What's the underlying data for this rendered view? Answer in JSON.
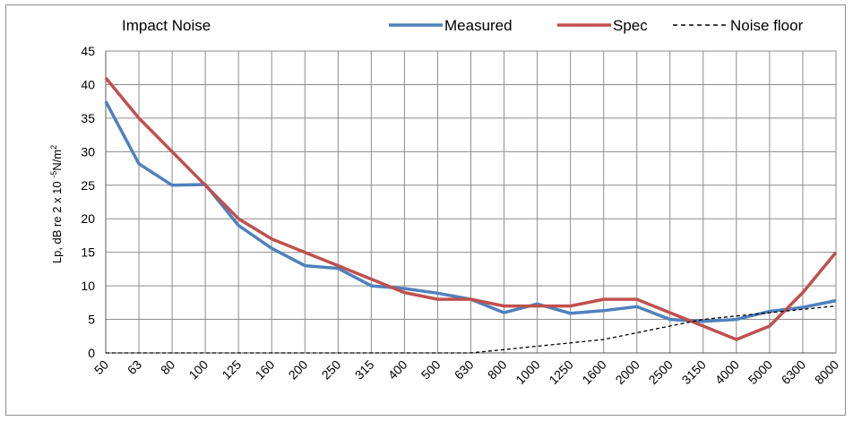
{
  "chart_data": {
    "type": "line",
    "title": "Impact Noise",
    "ylabel": {
      "prefix": "Lp, dB re 2 x 10",
      "exponent": "-5",
      "unit": "N/m",
      "unit_exponent": "2"
    },
    "xlabel": "",
    "ylim": [
      0,
      45
    ],
    "yticks": [
      0,
      5,
      10,
      15,
      20,
      25,
      30,
      35,
      40,
      45
    ],
    "categories": [
      "50",
      "63",
      "80",
      "100",
      "125",
      "160",
      "200",
      "250",
      "315",
      "400",
      "500",
      "630",
      "800",
      "1000",
      "1250",
      "1600",
      "2000",
      "2500",
      "3150",
      "4000",
      "5000",
      "6300",
      "8000"
    ],
    "grid": true,
    "legend_position": "top-right",
    "series": [
      {
        "name": "Measured",
        "color": "#4f81bd",
        "style": "solid",
        "values": [
          37.5,
          28.2,
          25,
          25.1,
          19,
          15.6,
          13,
          12.6,
          10,
          9.6,
          8.9,
          8,
          6,
          7.3,
          5.9,
          6.3,
          6.9,
          5,
          4.7,
          5,
          6.2,
          6.8,
          7.8
        ]
      },
      {
        "name": "Spec",
        "color": "#c0504d",
        "style": "solid",
        "values": [
          41,
          35,
          30,
          25,
          20,
          17,
          15,
          13,
          11,
          9,
          8,
          8,
          7,
          7,
          7,
          8,
          8,
          6,
          4,
          2,
          4,
          9,
          15
        ]
      },
      {
        "name": "Noise floor",
        "color": "#000000",
        "style": "dashed",
        "values": [
          0,
          0,
          0,
          0,
          0,
          0,
          0,
          0,
          0,
          0,
          0,
          0,
          0.5,
          1,
          1.5,
          2,
          3,
          4,
          5,
          5.5,
          6,
          6.5,
          7
        ]
      }
    ]
  }
}
